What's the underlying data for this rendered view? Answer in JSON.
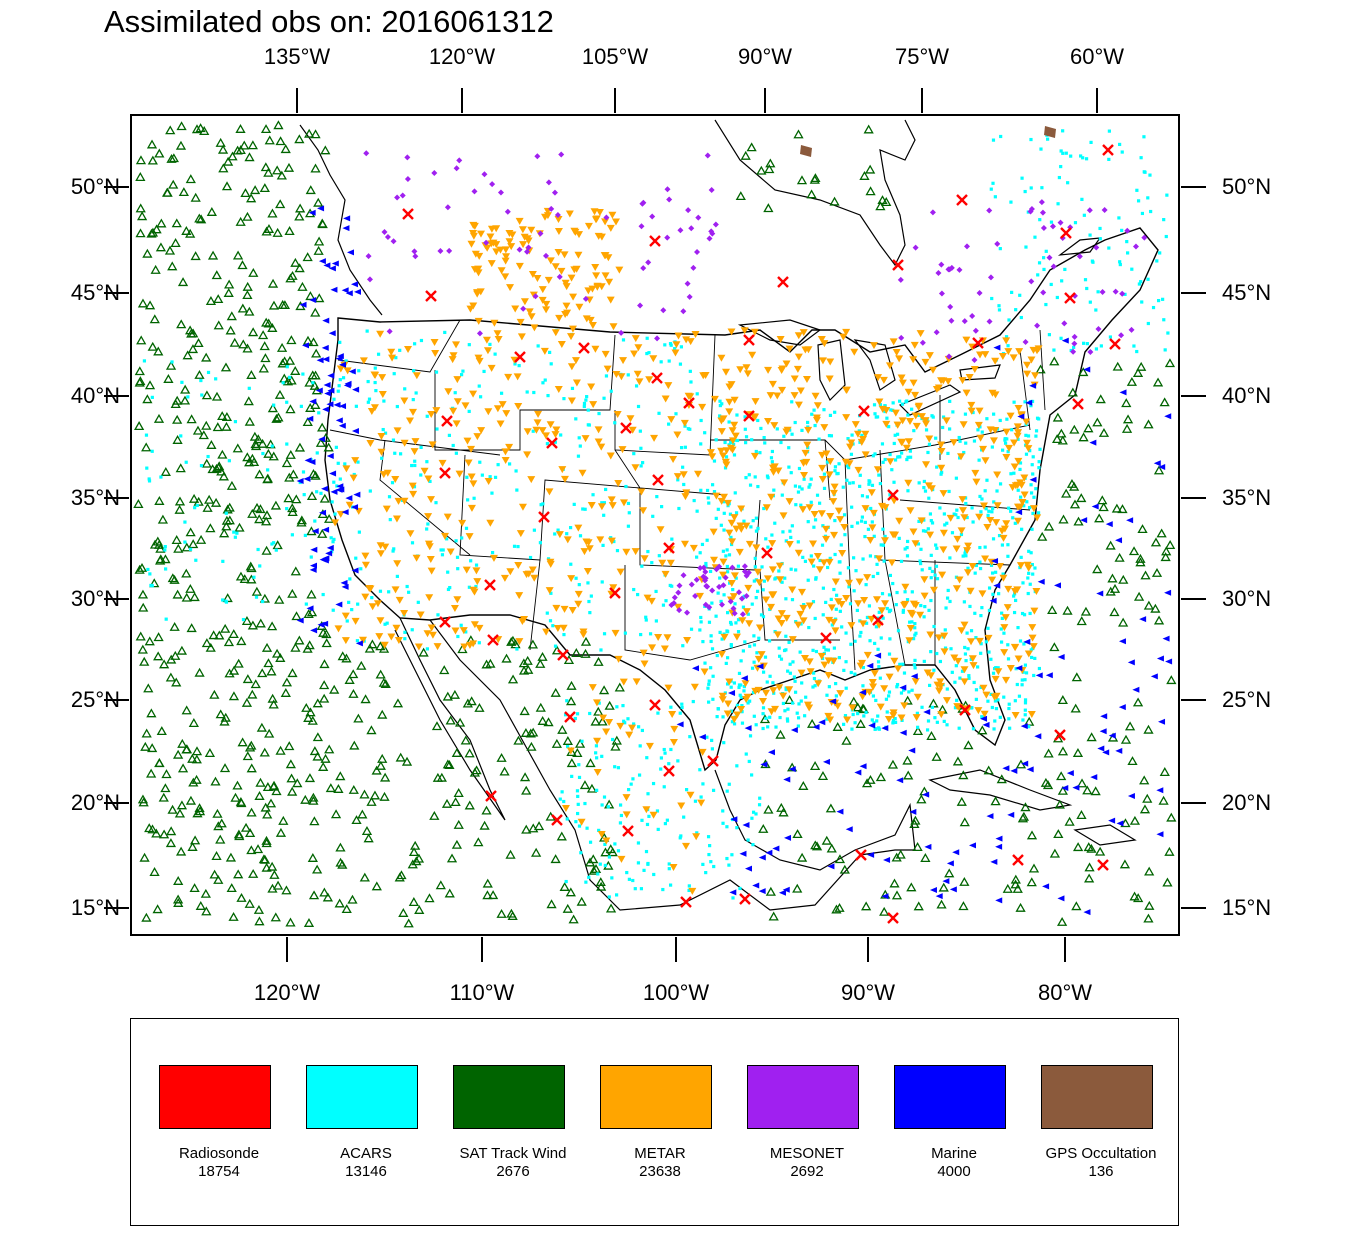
{
  "title": "Assimilated obs on: 2016061312",
  "top_lon_labels": [
    "135°W",
    "120°W",
    "105°W",
    "90°W",
    "75°W",
    "60°W"
  ],
  "bottom_lon_labels": [
    "120°W",
    "110°W",
    "100°W",
    "90°W",
    "80°W"
  ],
  "lat_labels": [
    "50°N",
    "45°N",
    "40°N",
    "35°N",
    "30°N",
    "25°N",
    "20°N",
    "15°N"
  ],
  "map": {
    "lon_range": [
      -128,
      -74
    ],
    "lat_range": [
      14,
      53
    ],
    "projection": "Lambert conformal (mid-latitude)"
  },
  "legend": [
    {
      "name": "Radiosonde",
      "count": "18754",
      "color": "#ff0000",
      "marker": "x"
    },
    {
      "name": "ACARS",
      "count": "13146",
      "color": "#00ffff",
      "marker": "dot"
    },
    {
      "name": "SAT Track Wind",
      "count": "2676",
      "color": "#006400",
      "marker": "triangle-up"
    },
    {
      "name": "METAR",
      "count": "23638",
      "color": "#ffa500",
      "marker": "triangle-down"
    },
    {
      "name": "MESONET",
      "count": "2692",
      "color": "#a020f0",
      "marker": "diamond"
    },
    {
      "name": "Marine",
      "count": "4000",
      "color": "#0000ff",
      "marker": "triangle-left"
    },
    {
      "name": "GPS Occultation",
      "count": "136",
      "color": "#8b5a3c",
      "marker": "square"
    }
  ]
}
